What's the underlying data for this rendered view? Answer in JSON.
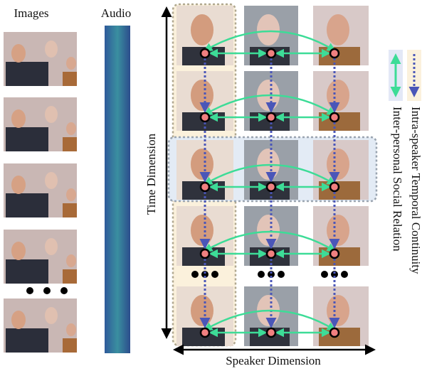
{
  "labels": {
    "images": "Images",
    "audio": "Audio",
    "time_axis": "Time Dimension",
    "speaker_axis": "Speaker Dimension",
    "legend_intra": "Intra-speaker Temporal Continuity",
    "legend_inter": "Inter-personal Social Relation"
  }
}
